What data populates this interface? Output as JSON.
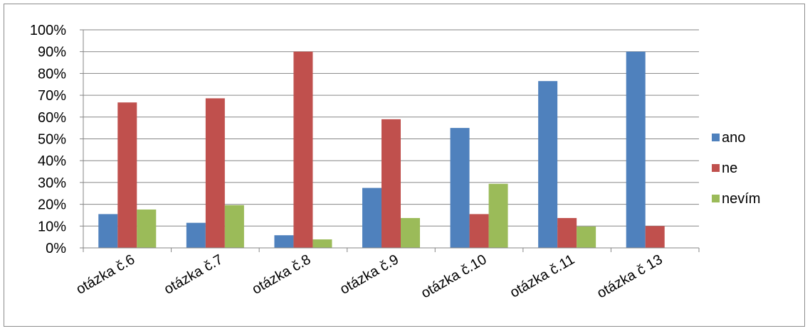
{
  "chart_data": {
    "type": "bar",
    "categories": [
      "otázka č.6",
      "otázka č.7",
      "otázka č.8",
      "otázka č.9",
      "otázka č.10",
      "otázka č.11",
      "otázka č 13"
    ],
    "series": [
      {
        "name": "ano",
        "color": "#4f81bd",
        "values": [
          15.5,
          11.5,
          5.8,
          27.5,
          55,
          76.5,
          90
        ]
      },
      {
        "name": "ne",
        "color": "#c0504d",
        "values": [
          66.7,
          68.6,
          90,
          59,
          15.5,
          13.7,
          10
        ]
      },
      {
        "name": "nevím",
        "color": "#9bbb59",
        "values": [
          17.6,
          19.6,
          3.9,
          13.7,
          29.4,
          9.8,
          0
        ]
      }
    ],
    "y_ticks": [
      "0%",
      "10%",
      "20%",
      "30%",
      "40%",
      "50%",
      "60%",
      "70%",
      "80%",
      "90%",
      "100%"
    ],
    "ylim": [
      0,
      100
    ],
    "grid": true,
    "legend_position": "right",
    "title": "",
    "xlabel": "",
    "ylabel": ""
  }
}
